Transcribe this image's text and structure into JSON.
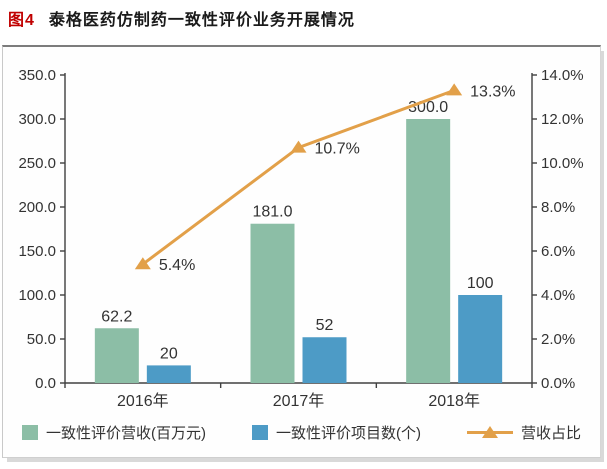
{
  "figure": {
    "label": "图4",
    "title": "泰格医药仿制药一致性评价业务开展情况"
  },
  "chart_data": {
    "type": "bar",
    "subtype": "bar-line-combo",
    "categories": [
      "2016年",
      "2017年",
      "2018年"
    ],
    "series": [
      {
        "name": "一致性评价营收(百万元)",
        "kind": "bar",
        "axis": "left",
        "color": "#8cbea6",
        "values": [
          62.2,
          181.0,
          300.0
        ],
        "labels": [
          "62.2",
          "181.0",
          "300.0"
        ]
      },
      {
        "name": "一致性评价项目数(个)",
        "kind": "bar",
        "axis": "left",
        "color": "#4d9bc6",
        "values": [
          20,
          52,
          100
        ],
        "labels": [
          "20",
          "52",
          "100"
        ]
      },
      {
        "name": "营收占比",
        "kind": "line",
        "axis": "right",
        "color": "#e2a049",
        "values": [
          5.4,
          10.7,
          13.3
        ],
        "labels": [
          "5.4%",
          "10.7%",
          "13.3%"
        ]
      }
    ],
    "left_axis": {
      "min": 0,
      "max": 350,
      "step": 50,
      "tick_labels_top_to_bottom": [
        "350.0",
        "300.0",
        "250.0",
        "200.0",
        "150.0",
        "100.0",
        "50.0",
        "0.0"
      ]
    },
    "right_axis": {
      "min": 0,
      "max": 14,
      "step": 2,
      "tick_labels_top_to_bottom": [
        "14.0%",
        "12.0%",
        "10.0%",
        "8.0%",
        "6.0%",
        "4.0%",
        "2.0%",
        "0.0%"
      ]
    },
    "grid": false,
    "legend_position": "bottom",
    "text_color": "#333333",
    "axis_color": "#404040"
  }
}
